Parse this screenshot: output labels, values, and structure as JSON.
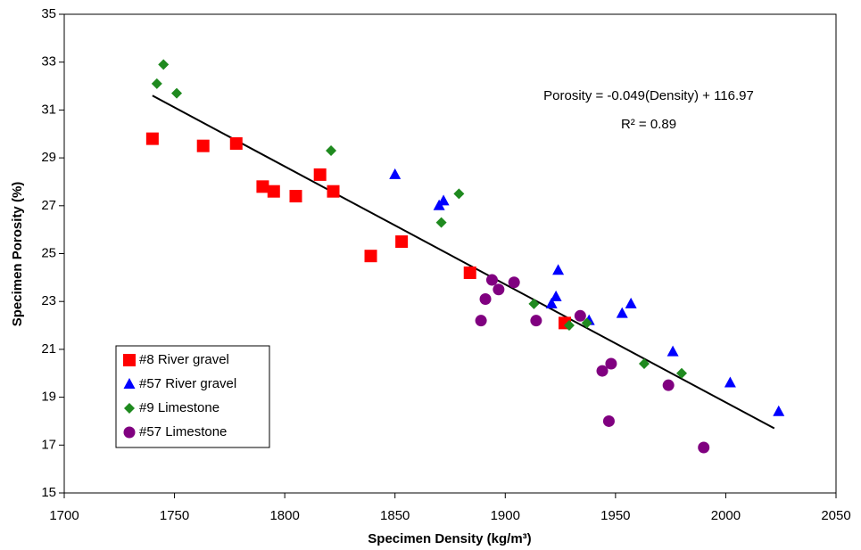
{
  "chart_data": {
    "type": "scatter",
    "xlabel": "Specimen Density (kg/m³)",
    "ylabel": "Specimen Porosity (%)",
    "annotations": [
      "Porosity = -0.049(Density) + 116.97",
      "R² = 0.89"
    ],
    "xlim": [
      1700,
      2050
    ],
    "xticks": [
      1700,
      1750,
      1800,
      1850,
      1900,
      1950,
      2000,
      2050
    ],
    "ylim": [
      15,
      35
    ],
    "yticks": [
      15,
      17,
      19,
      21,
      23,
      25,
      27,
      29,
      31,
      33,
      35
    ],
    "grid": false,
    "legend": "lower left",
    "series": [
      {
        "name": "#8 River gravel",
        "color": "#ff0000",
        "marker": "square",
        "x": [
          1740,
          1763,
          1778,
          1790,
          1795,
          1805,
          1816,
          1822,
          1839,
          1853,
          1884,
          1927
        ],
        "values": [
          29.8,
          29.5,
          29.6,
          27.8,
          27.6,
          27.4,
          28.3,
          27.6,
          24.9,
          25.5,
          24.2,
          22.1
        ]
      },
      {
        "name": "#57 River gravel",
        "color": "#0000ff",
        "marker": "triangle",
        "x": [
          1850,
          1870,
          1872,
          1924,
          1923,
          1921,
          1938,
          1953,
          1957,
          1976,
          2002,
          2024
        ],
        "values": [
          28.3,
          27.0,
          27.2,
          24.3,
          23.2,
          22.9,
          22.2,
          22.5,
          22.9,
          20.9,
          19.6,
          18.4
        ]
      },
      {
        "name": "#9 Limestone",
        "color": "#1f8a1f",
        "marker": "diamond",
        "x": [
          1742,
          1745,
          1751,
          1821,
          1879,
          1871,
          1913,
          1929,
          1937,
          1963,
          1980
        ],
        "values": [
          32.1,
          32.9,
          31.7,
          29.3,
          27.5,
          26.3,
          22.9,
          22.0,
          22.1,
          20.4,
          20.0
        ]
      },
      {
        "name": "#57 Limestone",
        "color": "#800080",
        "marker": "circle",
        "x": [
          1894,
          1904,
          1897,
          1891,
          1889,
          1914,
          1934,
          1948,
          1944,
          1947,
          1974,
          1990
        ],
        "values": [
          23.9,
          23.8,
          23.5,
          23.1,
          22.2,
          22.2,
          22.4,
          20.4,
          20.1,
          18.0,
          19.5,
          16.9
        ]
      }
    ],
    "trendline": {
      "x": [
        1740,
        2022
      ],
      "values": [
        31.6,
        17.7
      ],
      "color": "#000000"
    }
  }
}
